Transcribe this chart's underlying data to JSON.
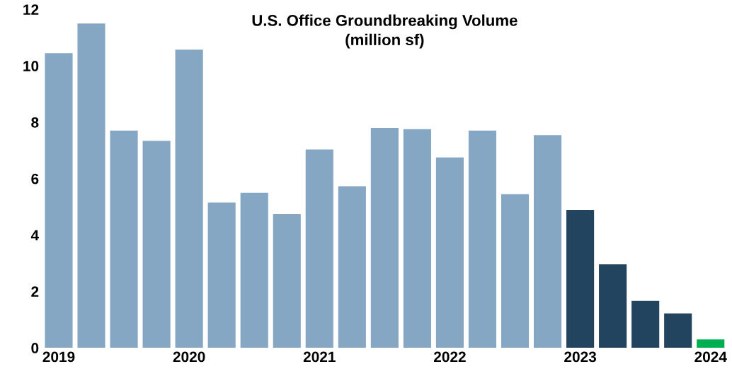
{
  "chart_data": {
    "type": "bar",
    "title": "U.S. Office Groundbreaking Volume\n(million sf)",
    "categories": [
      "2019",
      null,
      null,
      null,
      "2020",
      null,
      null,
      null,
      "2021",
      null,
      null,
      null,
      "2022",
      null,
      null,
      null,
      "2023",
      null,
      null,
      null,
      "2024"
    ],
    "values": [
      10.45,
      11.5,
      7.7,
      7.34,
      10.57,
      5.15,
      5.5,
      4.74,
      7.03,
      5.73,
      7.8,
      7.75,
      6.75,
      7.7,
      5.45,
      7.54,
      4.89,
      2.96,
      1.66,
      1.22,
      0.3
    ],
    "colors": [
      "#85a7c4",
      "#85a7c4",
      "#85a7c4",
      "#85a7c4",
      "#85a7c4",
      "#85a7c4",
      "#85a7c4",
      "#85a7c4",
      "#85a7c4",
      "#85a7c4",
      "#85a7c4",
      "#85a7c4",
      "#85a7c4",
      "#85a7c4",
      "#85a7c4",
      "#85a7c4",
      "#23445e",
      "#23445e",
      "#23445e",
      "#23445e",
      "#00b050"
    ],
    "ylim": [
      0,
      12
    ],
    "yticks": [
      0,
      2,
      4,
      6,
      8,
      10,
      12
    ],
    "grid": false
  }
}
